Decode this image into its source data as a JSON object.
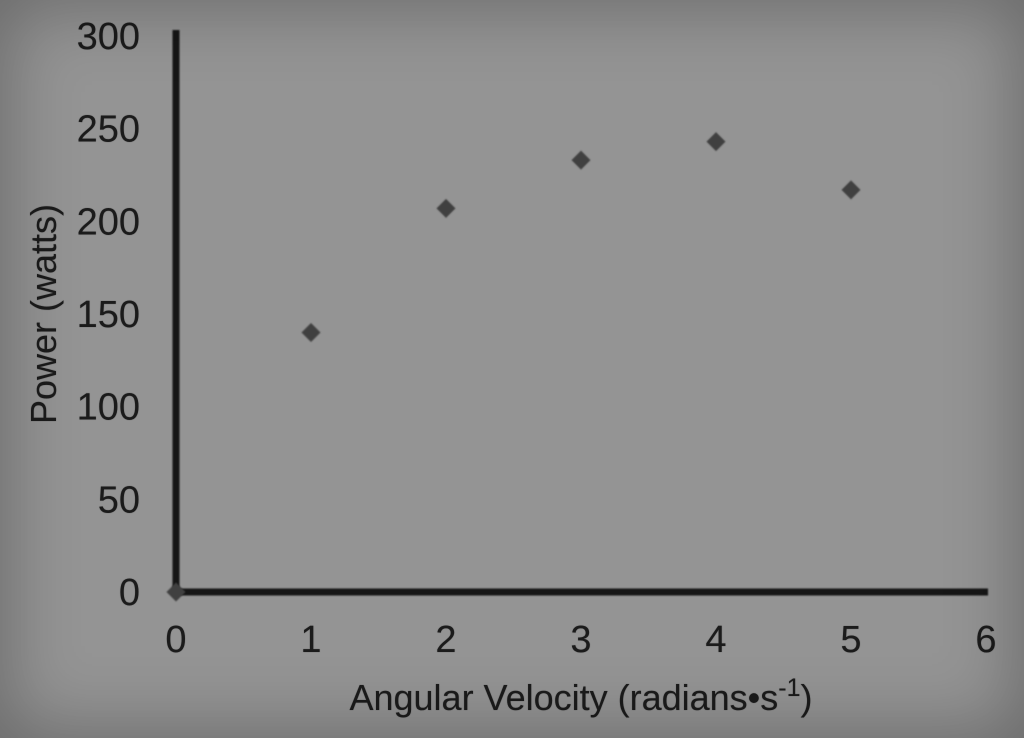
{
  "figure": {
    "kind": "scatter-chart-photo",
    "background_color": "#949494",
    "axis_color": "#141414",
    "text_color": "#1b1b1b",
    "point_color": "#3f3f3f"
  },
  "chart_data": {
    "type": "scatter",
    "marker": "diamond",
    "title": "",
    "x": [
      0,
      1,
      2,
      3,
      4,
      5
    ],
    "y": [
      0,
      140,
      207,
      233,
      243,
      217
    ],
    "xlabel_main": "Angular Velocity (radians•s",
    "xlabel_superscript": "-1",
    "xlabel_suffix": ")",
    "ylabel": "Power (watts)",
    "xlim": [
      0,
      6
    ],
    "ylim": [
      0,
      300
    ],
    "xticks": [
      0,
      1,
      2,
      3,
      4,
      5,
      6
    ],
    "yticks": [
      0,
      50,
      100,
      150,
      200,
      250,
      300
    ],
    "grid": false,
    "legend": false
  }
}
